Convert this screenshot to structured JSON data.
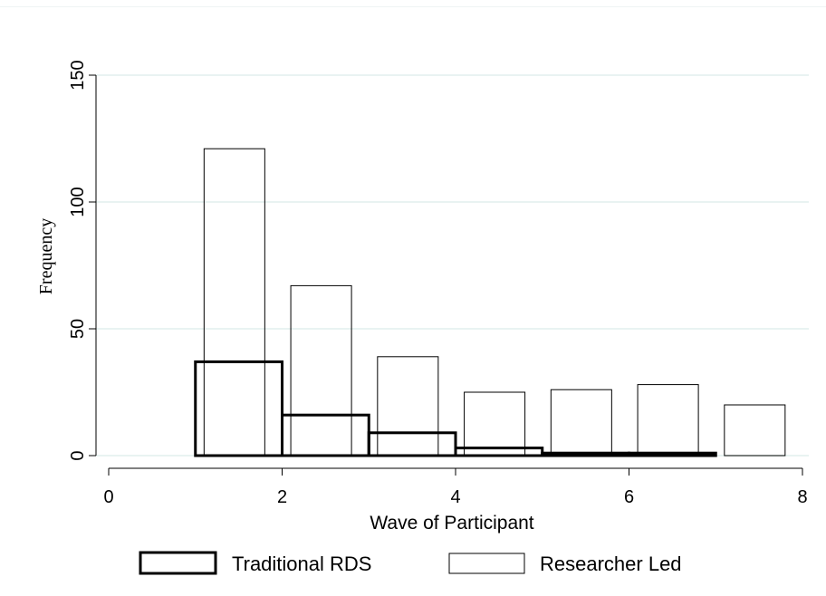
{
  "chart_data": {
    "type": "bar",
    "title": "",
    "xlabel": "Wave of Participant",
    "ylabel": "Frequency",
    "xlim": [
      -0.2,
      8.1
    ],
    "ylim": [
      0,
      150
    ],
    "xticks": [
      0,
      2,
      4,
      6,
      8
    ],
    "yticks": [
      0,
      50,
      100,
      150
    ],
    "grid": true,
    "legend_position": "bottom",
    "series": [
      {
        "name": "Researcher Led",
        "bins": [
          {
            "start": 1.1,
            "end": 1.8,
            "value": 121
          },
          {
            "start": 2.1,
            "end": 2.8,
            "value": 67
          },
          {
            "start": 3.1,
            "end": 3.8,
            "value": 39
          },
          {
            "start": 4.1,
            "end": 4.8,
            "value": 25
          },
          {
            "start": 5.1,
            "end": 5.8,
            "value": 26
          },
          {
            "start": 6.1,
            "end": 6.8,
            "value": 28
          },
          {
            "start": 7.1,
            "end": 7.8,
            "value": 20
          }
        ]
      },
      {
        "name": "Traditional RDS",
        "bins": [
          {
            "start": 1,
            "end": 2,
            "value": 37
          },
          {
            "start": 2,
            "end": 3,
            "value": 16
          },
          {
            "start": 3,
            "end": 4,
            "value": 9
          },
          {
            "start": 4,
            "end": 5,
            "value": 3
          },
          {
            "start": 5,
            "end": 6,
            "value": 1
          },
          {
            "start": 6,
            "end": 7,
            "value": 1
          }
        ]
      }
    ],
    "colors": {
      "grid": "#e2efee",
      "bars": "#000000"
    }
  }
}
